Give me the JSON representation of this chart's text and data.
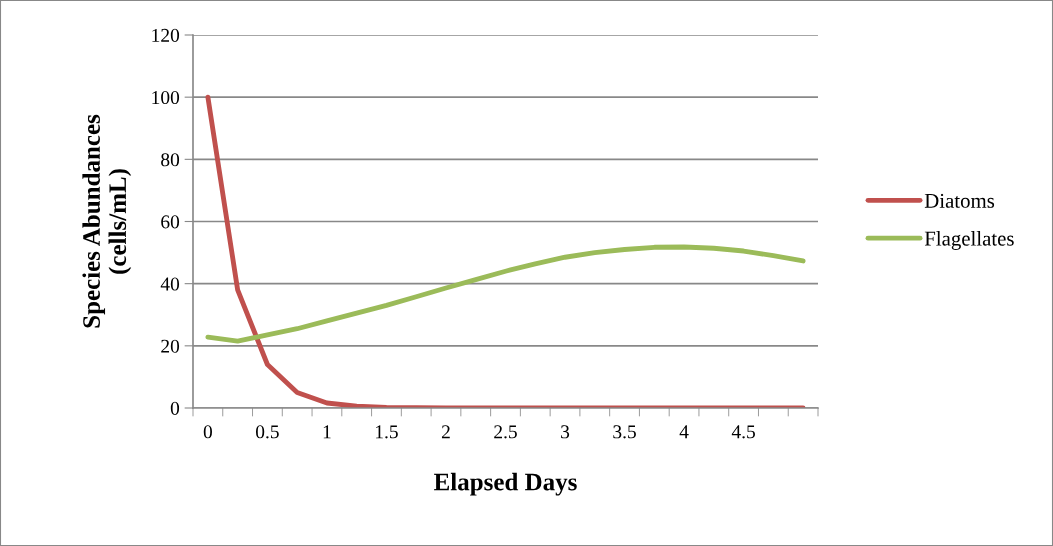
{
  "chart_data": {
    "type": "line",
    "xlabel": "Elapsed Days",
    "ylabel": "Species Abundances\n(cells/mL)",
    "categories": [
      "0",
      null,
      "0.5",
      null,
      "1",
      null,
      "1.5",
      null,
      "2",
      null,
      "2.5",
      null,
      "3",
      null,
      "3.5",
      null,
      "4",
      null,
      "4.5",
      null,
      null
    ],
    "series": [
      {
        "name": "Diatoms",
        "color": "#c0504d",
        "values": [
          100,
          38,
          14,
          5,
          1.6,
          0.6,
          0.2,
          0.1,
          0,
          0,
          0,
          0,
          0,
          0,
          0,
          0,
          0,
          0,
          0,
          0,
          0
        ]
      },
      {
        "name": "Flagellates",
        "color": "#9bbb59",
        "values": [
          22.8,
          21.5,
          23.5,
          25.5,
          28,
          30.5,
          33,
          35.8,
          38.6,
          41.3,
          44,
          46.4,
          48.5,
          50,
          51,
          51.7,
          51.8,
          51.4,
          50.5,
          49,
          47.3
        ]
      }
    ],
    "ylim": [
      0,
      120
    ],
    "yticks": [
      0,
      20,
      40,
      60,
      80,
      100,
      120
    ],
    "grid": "y",
    "legend": "right",
    "marker": "none",
    "line_style": "solid"
  }
}
